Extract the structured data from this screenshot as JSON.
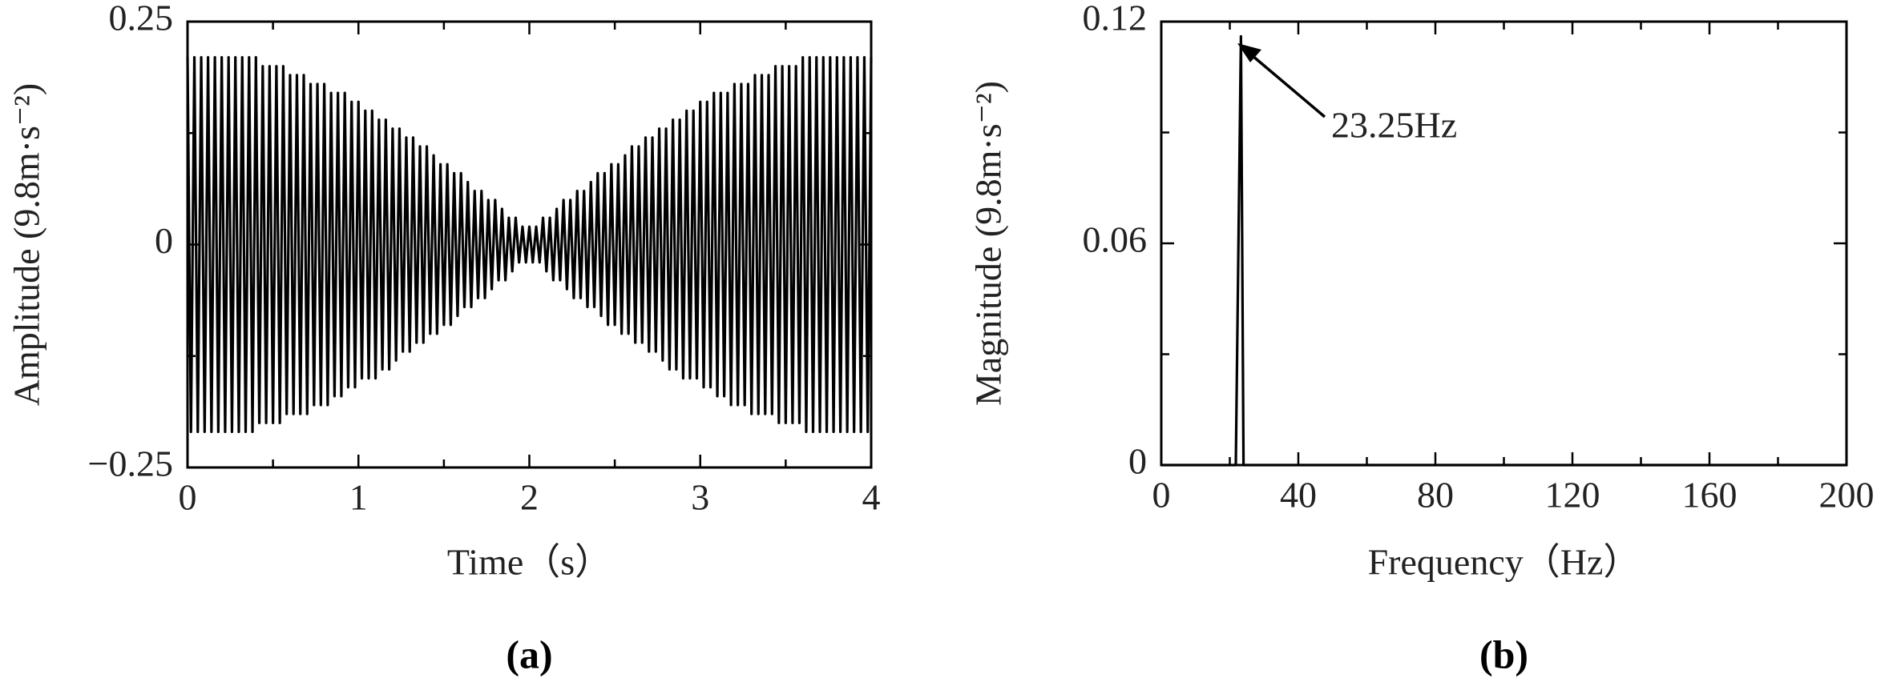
{
  "chart_data": [
    {
      "type": "line",
      "panel": "(a)",
      "xlabel": "Time（s）",
      "ylabel": "Amplitude (9.8m·s⁻²)",
      "color": "#000000",
      "xlim": [
        0,
        4
      ],
      "ylim": [
        -0.25,
        0.25
      ],
      "xticks": [
        0,
        1,
        2,
        3,
        4
      ],
      "xminorticks": [
        0.5,
        1.5,
        2.5,
        3.5
      ],
      "yticks": [
        {
          "value": -0.25,
          "label": "−0.25"
        },
        0,
        0.25
      ],
      "yminorticks": [
        -0.125,
        0.125
      ],
      "x": [
        0,
        0.02,
        0.04,
        0.06,
        0.08,
        0.1,
        0.12,
        0.14,
        0.16,
        0.18,
        0.2,
        0.22,
        0.24,
        0.26,
        0.28,
        0.3,
        0.32,
        0.34,
        0.36,
        0.38,
        0.4,
        0.42,
        0.44,
        0.46,
        0.48,
        0.5,
        0.52,
        0.54,
        0.56,
        0.58,
        0.6,
        0.62,
        0.64,
        0.66,
        0.68,
        0.7,
        0.72,
        0.74,
        0.76,
        0.78,
        0.8,
        0.82,
        0.84,
        0.86,
        0.88,
        0.9,
        0.92,
        0.94,
        0.96,
        0.98,
        1,
        1.02,
        1.04,
        1.06,
        1.08,
        1.1,
        1.12,
        1.14,
        1.16,
        1.18,
        1.2,
        1.22,
        1.24,
        1.26,
        1.28,
        1.3,
        1.32,
        1.34,
        1.36,
        1.38,
        1.4,
        1.42,
        1.44,
        1.46,
        1.48,
        1.5,
        1.52,
        1.54,
        1.56,
        1.58,
        1.6,
        1.62,
        1.64,
        1.66,
        1.68,
        1.7,
        1.72,
        1.74,
        1.76,
        1.78,
        1.8,
        1.82,
        1.84,
        1.86,
        1.88,
        1.9,
        1.92,
        1.94,
        1.96,
        1.98,
        2,
        2.02,
        2.04,
        2.06,
        2.08,
        2.1,
        2.12,
        2.14,
        2.16,
        2.18,
        2.2,
        2.22,
        2.24,
        2.26,
        2.28,
        2.3,
        2.32,
        2.34,
        2.36,
        2.38,
        2.4,
        2.42,
        2.44,
        2.46,
        2.48,
        2.5,
        2.52,
        2.54,
        2.56,
        2.58,
        2.6,
        2.62,
        2.64,
        2.66,
        2.68,
        2.7,
        2.72,
        2.74,
        2.76,
        2.78,
        2.8,
        2.82,
        2.84,
        2.86,
        2.88,
        2.9,
        2.92,
        2.94,
        2.96,
        2.98,
        3,
        3.02,
        3.04,
        3.06,
        3.08,
        3.1,
        3.12,
        3.14,
        3.16,
        3.18,
        3.2,
        3.22,
        3.24,
        3.26,
        3.28,
        3.3,
        3.32,
        3.34,
        3.36,
        3.38,
        3.4,
        3.42,
        3.44,
        3.46,
        3.48,
        3.5,
        3.52,
        3.54,
        3.56,
        3.58,
        3.6,
        3.62,
        3.64,
        3.66,
        3.68,
        3.7,
        3.72,
        3.74,
        3.76,
        3.78,
        3.8,
        3.82,
        3.84,
        3.86,
        3.88,
        3.9,
        3.92,
        3.94,
        3.96,
        3.98,
        4
      ],
      "values": [
        0.21,
        -0.21,
        0.21,
        -0.21,
        0.21,
        -0.21,
        0.21,
        -0.21,
        0.21,
        -0.21,
        0.21,
        -0.21,
        0.21,
        -0.21,
        0.21,
        -0.21,
        0.21,
        -0.21,
        0.21,
        -0.21,
        0.21,
        -0.2,
        0.2,
        -0.2,
        0.2,
        -0.2,
        0.2,
        -0.2,
        0.2,
        -0.19,
        0.19,
        -0.19,
        0.19,
        -0.19,
        0.19,
        -0.19,
        0.18,
        -0.18,
        0.18,
        -0.18,
        0.18,
        -0.18,
        0.17,
        -0.17,
        0.17,
        -0.17,
        0.17,
        -0.16,
        0.16,
        -0.16,
        0.16,
        -0.15,
        0.15,
        -0.15,
        0.15,
        -0.15,
        0.14,
        -0.14,
        0.14,
        -0.14,
        0.13,
        -0.13,
        0.13,
        -0.12,
        0.12,
        -0.12,
        0.12,
        -0.11,
        0.11,
        -0.11,
        0.11,
        -0.1,
        0.1,
        -0.1,
        0.09,
        -0.09,
        0.09,
        -0.09,
        0.08,
        -0.08,
        0.08,
        -0.07,
        0.07,
        -0.07,
        0.06,
        -0.06,
        0.06,
        -0.06,
        0.05,
        -0.05,
        0.05,
        -0.04,
        0.04,
        -0.04,
        0.03,
        -0.03,
        0.03,
        -0.02,
        0.02,
        -0.02,
        0.02,
        -0.02,
        0.02,
        -0.02,
        0.03,
        -0.03,
        0.03,
        -0.04,
        0.04,
        -0.04,
        0.05,
        -0.05,
        0.05,
        -0.06,
        0.06,
        -0.06,
        0.06,
        -0.07,
        0.07,
        -0.07,
        0.08,
        -0.08,
        0.08,
        -0.09,
        0.09,
        -0.09,
        0.09,
        -0.1,
        0.1,
        -0.1,
        0.11,
        -0.11,
        0.11,
        -0.11,
        0.12,
        -0.12,
        0.12,
        -0.12,
        0.13,
        -0.13,
        0.13,
        -0.14,
        0.14,
        -0.14,
        0.14,
        -0.15,
        0.15,
        -0.15,
        0.15,
        -0.15,
        0.16,
        -0.16,
        0.16,
        -0.16,
        0.17,
        -0.17,
        0.17,
        -0.17,
        0.17,
        -0.18,
        0.18,
        -0.18,
        0.18,
        -0.18,
        0.18,
        -0.19,
        0.19,
        -0.19,
        0.19,
        -0.19,
        0.19,
        -0.19,
        0.2,
        -0.2,
        0.2,
        -0.2,
        0.2,
        -0.2,
        0.2,
        -0.2,
        0.21,
        -0.21,
        0.21,
        -0.21,
        0.21,
        -0.21,
        0.21,
        -0.21,
        0.21,
        -0.21,
        0.21,
        -0.21,
        0.21,
        -0.21,
        0.21,
        -0.21,
        0.21,
        -0.21,
        0.21,
        -0.21,
        0.21
      ]
    },
    {
      "type": "line",
      "panel": "(b)",
      "xlabel": "Frequency（Hz）",
      "ylabel": "Magnitude (9.8m·s⁻²)",
      "color": "#000000",
      "annotation": "23.25Hz",
      "xlim": [
        0,
        200
      ],
      "ylim": [
        0,
        0.12
      ],
      "xticks": [
        0,
        40,
        80,
        120,
        160,
        200
      ],
      "xminorticks": [
        20,
        60,
        100,
        140,
        180
      ],
      "yticks": [
        0,
        0.06,
        0.12
      ],
      "yminorticks": [
        0.03,
        0.09
      ],
      "x": [
        0,
        21.75,
        23.25,
        24,
        200
      ],
      "values": [
        0,
        0,
        0.116,
        0,
        0
      ]
    }
  ]
}
